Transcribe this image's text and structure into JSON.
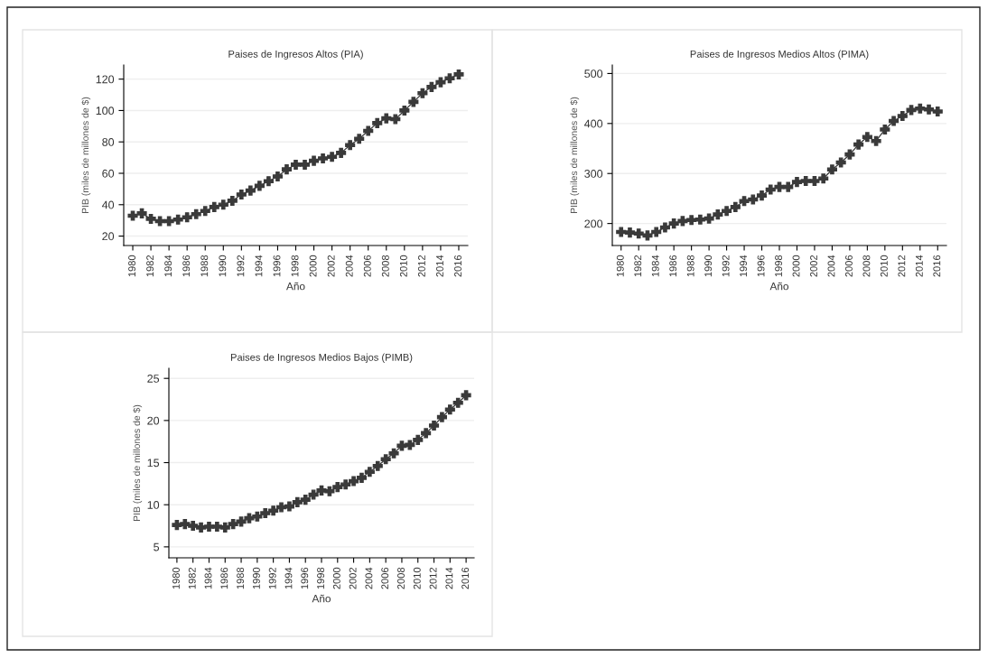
{
  "chart_data": [
    {
      "type": "line",
      "title": "Paises de Ingresos Altos (PIA)",
      "xlabel": "Año",
      "ylabel": "PIB (miles de millones de $)",
      "marker": "cross",
      "line_style": "solid",
      "grid": "y",
      "x": [
        1980,
        1981,
        1982,
        1983,
        1984,
        1985,
        1986,
        1987,
        1988,
        1989,
        1990,
        1991,
        1992,
        1993,
        1994,
        1995,
        1996,
        1997,
        1998,
        1999,
        2000,
        2001,
        2002,
        2003,
        2004,
        2005,
        2006,
        2007,
        2008,
        2009,
        2010,
        2011,
        2012,
        2013,
        2014,
        2015,
        2016
      ],
      "series": [
        {
          "color": "#3a3a3a",
          "values": [
            33,
            34.5,
            31,
            29.5,
            29.5,
            30.5,
            32,
            34,
            36,
            38.5,
            40,
            42.5,
            46.5,
            49,
            52,
            55,
            58,
            62.5,
            65.5,
            65.5,
            68,
            69.5,
            70.5,
            73,
            78,
            82,
            87,
            92,
            95,
            94.5,
            100,
            105.5,
            111,
            115,
            118,
            120.5,
            123
          ]
        }
      ],
      "xlim": [
        1979,
        2017
      ],
      "xticks": [
        1980,
        1982,
        1984,
        1986,
        1988,
        1990,
        1992,
        1994,
        1996,
        1998,
        2000,
        2002,
        2004,
        2006,
        2008,
        2010,
        2012,
        2014,
        2016
      ],
      "ylim": [
        14,
        129
      ],
      "yticks": [
        20,
        40,
        60,
        80,
        100,
        120
      ]
    },
    {
      "type": "line",
      "title": "Paises de Ingresos Medios Altos (PIMA)",
      "xlabel": "Año",
      "ylabel": "PIB (miles de millones de $)",
      "marker": "cross",
      "line_style": "solid",
      "grid": "y",
      "x": [
        1980,
        1981,
        1982,
        1983,
        1984,
        1985,
        1986,
        1987,
        1988,
        1989,
        1990,
        1991,
        1992,
        1993,
        1994,
        1995,
        1996,
        1997,
        1998,
        1999,
        2000,
        2001,
        2002,
        2003,
        2004,
        2005,
        2006,
        2007,
        2008,
        2009,
        2010,
        2011,
        2012,
        2013,
        2014,
        2015,
        2016
      ],
      "series": [
        {
          "color": "#3a3a3a",
          "values": [
            183,
            182,
            180,
            176,
            183,
            192,
            200,
            205,
            207,
            208,
            210,
            218,
            225,
            233,
            245,
            248,
            256,
            268,
            273,
            273,
            283,
            285,
            285,
            290,
            308,
            322,
            338,
            358,
            373,
            365,
            388,
            405,
            415,
            427,
            430,
            428,
            424
          ]
        }
      ],
      "xlim": [
        1979,
        2017
      ],
      "xticks": [
        1980,
        1982,
        1984,
        1986,
        1988,
        1990,
        1992,
        1994,
        1996,
        1998,
        2000,
        2002,
        2004,
        2006,
        2008,
        2010,
        2012,
        2014,
        2016
      ],
      "ylim": [
        156,
        517
      ],
      "yticks": [
        200,
        300,
        400,
        500
      ]
    },
    {
      "type": "line",
      "title": "Paises de Ingresos Medios Bajos (PIMB)",
      "xlabel": "Año",
      "ylabel": "PIB (miles de millones de $)",
      "marker": "cross",
      "line_style": "solid",
      "grid": "y",
      "x": [
        1980,
        1981,
        1982,
        1983,
        1984,
        1985,
        1986,
        1987,
        1988,
        1989,
        1990,
        1991,
        1992,
        1993,
        1994,
        1995,
        1996,
        1997,
        1998,
        1999,
        2000,
        2001,
        2002,
        2003,
        2004,
        2005,
        2006,
        2007,
        2008,
        2009,
        2010,
        2011,
        2012,
        2013,
        2014,
        2015,
        2016
      ],
      "series": [
        {
          "color": "#3a3a3a",
          "values": [
            7.6,
            7.7,
            7.5,
            7.3,
            7.4,
            7.4,
            7.3,
            7.7,
            8.0,
            8.4,
            8.6,
            9.0,
            9.3,
            9.7,
            9.8,
            10.3,
            10.6,
            11.2,
            11.7,
            11.6,
            12.1,
            12.4,
            12.8,
            13.2,
            13.9,
            14.6,
            15.4,
            16.1,
            17.0,
            17.1,
            17.7,
            18.5,
            19.4,
            20.4,
            21.3,
            22.1,
            23.0
          ]
        }
      ],
      "xlim": [
        1979,
        2017
      ],
      "xticks": [
        1980,
        1982,
        1984,
        1986,
        1988,
        1990,
        1992,
        1994,
        1996,
        1998,
        2000,
        2002,
        2004,
        2006,
        2008,
        2010,
        2012,
        2014,
        2016
      ],
      "ylim": [
        3.7,
        26.2
      ],
      "yticks": [
        5,
        10,
        15,
        20,
        25
      ]
    }
  ]
}
